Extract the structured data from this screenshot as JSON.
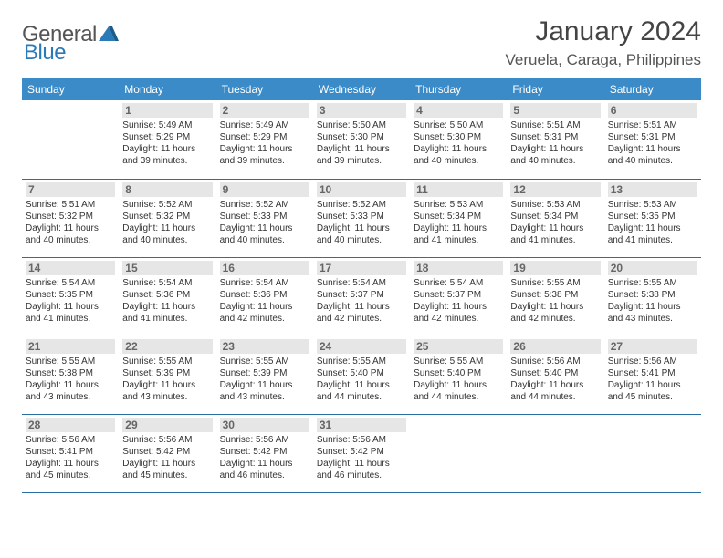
{
  "brand": {
    "word1": "General",
    "word2": "Blue"
  },
  "title": "January 2024",
  "location": "Veruela, Caraga, Philippines",
  "dayNames": [
    "Sunday",
    "Monday",
    "Tuesday",
    "Wednesday",
    "Thursday",
    "Friday",
    "Saturday"
  ],
  "colors": {
    "header_bg": "#3b8bc8",
    "header_text": "#ffffff",
    "daynum_bg": "#e6e6e6",
    "border": "#2a6fa3",
    "text": "#333333",
    "title": "#444444"
  },
  "fonts": {
    "title_size": 30,
    "location_size": 17,
    "header_size": 12,
    "daynum_size": 12,
    "info_size": 10
  },
  "weeks": [
    [
      null,
      {
        "n": "1",
        "sunrise": "5:49 AM",
        "sunset": "5:29 PM",
        "dl": "11 hours and 39 minutes."
      },
      {
        "n": "2",
        "sunrise": "5:49 AM",
        "sunset": "5:29 PM",
        "dl": "11 hours and 39 minutes."
      },
      {
        "n": "3",
        "sunrise": "5:50 AM",
        "sunset": "5:30 PM",
        "dl": "11 hours and 39 minutes."
      },
      {
        "n": "4",
        "sunrise": "5:50 AM",
        "sunset": "5:30 PM",
        "dl": "11 hours and 40 minutes."
      },
      {
        "n": "5",
        "sunrise": "5:51 AM",
        "sunset": "5:31 PM",
        "dl": "11 hours and 40 minutes."
      },
      {
        "n": "6",
        "sunrise": "5:51 AM",
        "sunset": "5:31 PM",
        "dl": "11 hours and 40 minutes."
      }
    ],
    [
      {
        "n": "7",
        "sunrise": "5:51 AM",
        "sunset": "5:32 PM",
        "dl": "11 hours and 40 minutes."
      },
      {
        "n": "8",
        "sunrise": "5:52 AM",
        "sunset": "5:32 PM",
        "dl": "11 hours and 40 minutes."
      },
      {
        "n": "9",
        "sunrise": "5:52 AM",
        "sunset": "5:33 PM",
        "dl": "11 hours and 40 minutes."
      },
      {
        "n": "10",
        "sunrise": "5:52 AM",
        "sunset": "5:33 PM",
        "dl": "11 hours and 40 minutes."
      },
      {
        "n": "11",
        "sunrise": "5:53 AM",
        "sunset": "5:34 PM",
        "dl": "11 hours and 41 minutes."
      },
      {
        "n": "12",
        "sunrise": "5:53 AM",
        "sunset": "5:34 PM",
        "dl": "11 hours and 41 minutes."
      },
      {
        "n": "13",
        "sunrise": "5:53 AM",
        "sunset": "5:35 PM",
        "dl": "11 hours and 41 minutes."
      }
    ],
    [
      {
        "n": "14",
        "sunrise": "5:54 AM",
        "sunset": "5:35 PM",
        "dl": "11 hours and 41 minutes."
      },
      {
        "n": "15",
        "sunrise": "5:54 AM",
        "sunset": "5:36 PM",
        "dl": "11 hours and 41 minutes."
      },
      {
        "n": "16",
        "sunrise": "5:54 AM",
        "sunset": "5:36 PM",
        "dl": "11 hours and 42 minutes."
      },
      {
        "n": "17",
        "sunrise": "5:54 AM",
        "sunset": "5:37 PM",
        "dl": "11 hours and 42 minutes."
      },
      {
        "n": "18",
        "sunrise": "5:54 AM",
        "sunset": "5:37 PM",
        "dl": "11 hours and 42 minutes."
      },
      {
        "n": "19",
        "sunrise": "5:55 AM",
        "sunset": "5:38 PM",
        "dl": "11 hours and 42 minutes."
      },
      {
        "n": "20",
        "sunrise": "5:55 AM",
        "sunset": "5:38 PM",
        "dl": "11 hours and 43 minutes."
      }
    ],
    [
      {
        "n": "21",
        "sunrise": "5:55 AM",
        "sunset": "5:38 PM",
        "dl": "11 hours and 43 minutes."
      },
      {
        "n": "22",
        "sunrise": "5:55 AM",
        "sunset": "5:39 PM",
        "dl": "11 hours and 43 minutes."
      },
      {
        "n": "23",
        "sunrise": "5:55 AM",
        "sunset": "5:39 PM",
        "dl": "11 hours and 43 minutes."
      },
      {
        "n": "24",
        "sunrise": "5:55 AM",
        "sunset": "5:40 PM",
        "dl": "11 hours and 44 minutes."
      },
      {
        "n": "25",
        "sunrise": "5:55 AM",
        "sunset": "5:40 PM",
        "dl": "11 hours and 44 minutes."
      },
      {
        "n": "26",
        "sunrise": "5:56 AM",
        "sunset": "5:40 PM",
        "dl": "11 hours and 44 minutes."
      },
      {
        "n": "27",
        "sunrise": "5:56 AM",
        "sunset": "5:41 PM",
        "dl": "11 hours and 45 minutes."
      }
    ],
    [
      {
        "n": "28",
        "sunrise": "5:56 AM",
        "sunset": "5:41 PM",
        "dl": "11 hours and 45 minutes."
      },
      {
        "n": "29",
        "sunrise": "5:56 AM",
        "sunset": "5:42 PM",
        "dl": "11 hours and 45 minutes."
      },
      {
        "n": "30",
        "sunrise": "5:56 AM",
        "sunset": "5:42 PM",
        "dl": "11 hours and 46 minutes."
      },
      {
        "n": "31",
        "sunrise": "5:56 AM",
        "sunset": "5:42 PM",
        "dl": "11 hours and 46 minutes."
      },
      null,
      null,
      null
    ]
  ],
  "labels": {
    "sunrise": "Sunrise:",
    "sunset": "Sunset:",
    "daylight": "Daylight:"
  }
}
